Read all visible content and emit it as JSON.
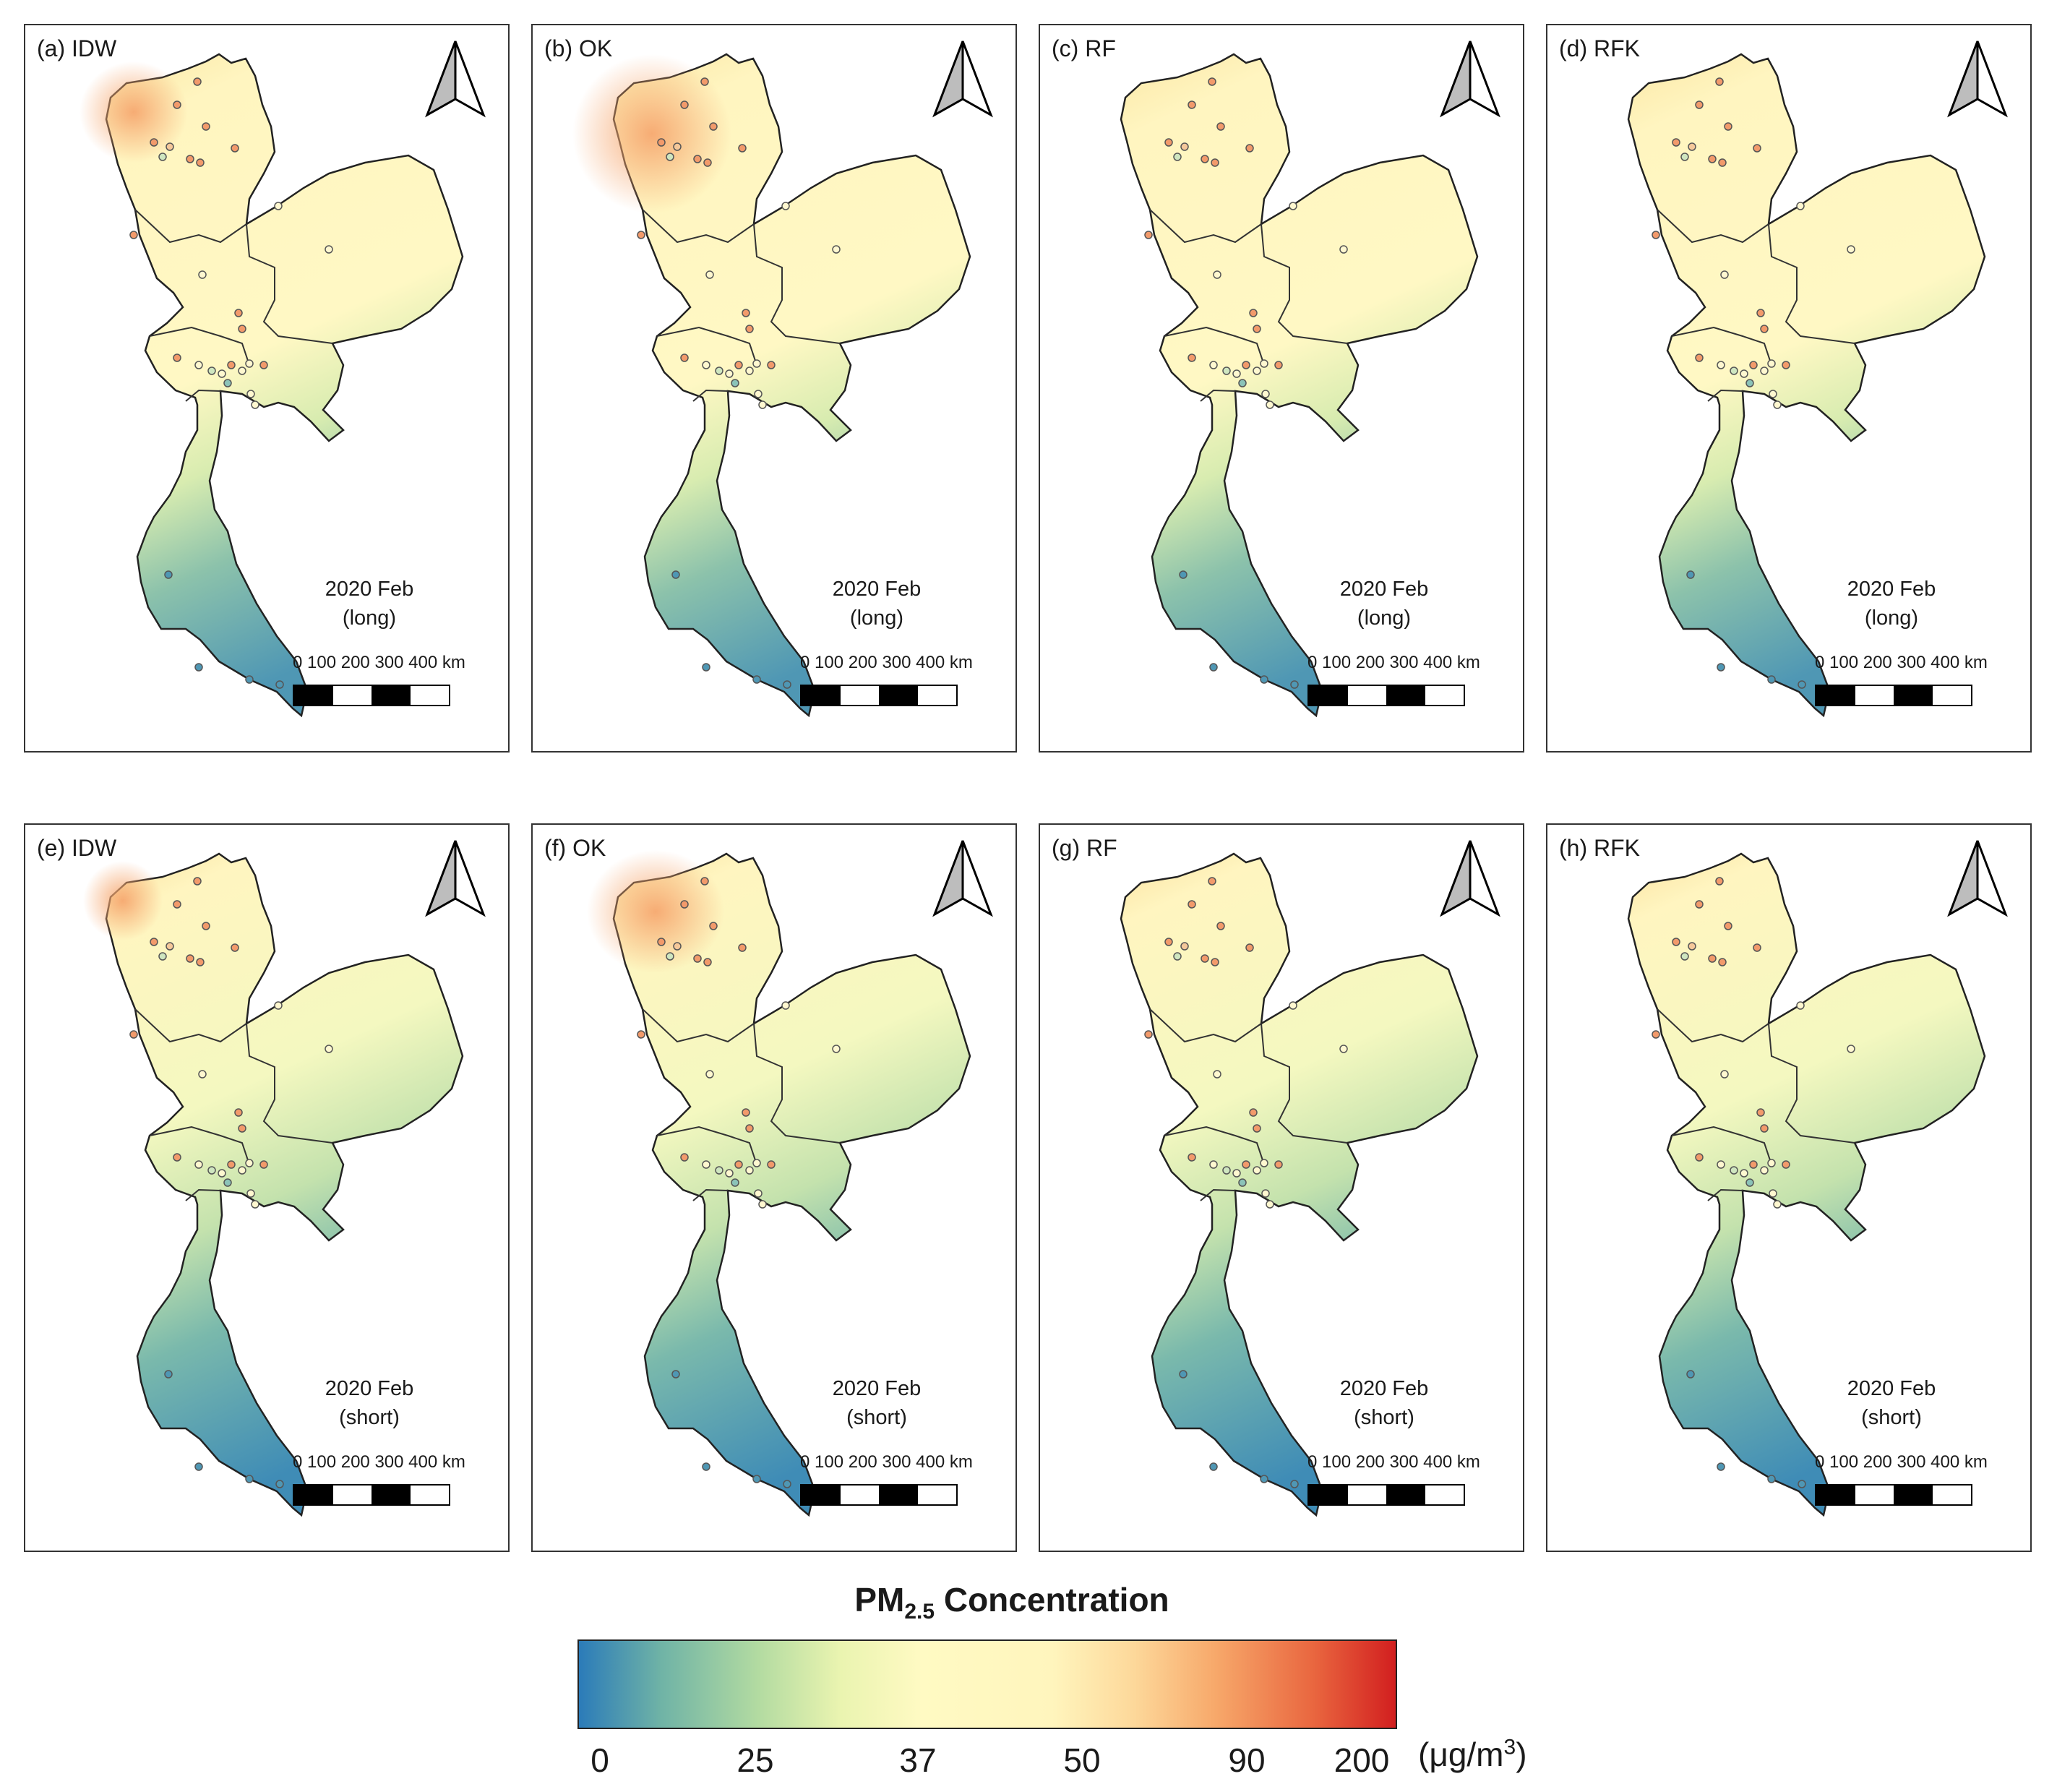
{
  "panels": [
    {
      "label": "(a) IDW",
      "date": "2020 Feb",
      "range": "(long)"
    },
    {
      "label": "(b) OK",
      "date": "2020 Feb",
      "range": "(long)"
    },
    {
      "label": "(c) RF",
      "date": "2020 Feb",
      "range": "(long)"
    },
    {
      "label": "(d) RFK",
      "date": "2020 Feb",
      "range": "(long)"
    },
    {
      "label": "(e) IDW",
      "date": "2020 Feb",
      "range": "(short)"
    },
    {
      "label": "(f) OK",
      "date": "2020 Feb",
      "range": "(short)"
    },
    {
      "label": "(g) RF",
      "date": "2020 Feb",
      "range": "(short)"
    },
    {
      "label": "(h) RFK",
      "date": "2020 Feb",
      "range": "(short)"
    }
  ],
  "scale_bar": {
    "labels": "0   100 200 300 400 km"
  },
  "legend": {
    "title_main": "PM",
    "title_sub": "2.5",
    "title_rest": " Concentration",
    "ticks": [
      "0",
      "25",
      "37",
      "50",
      "90",
      "200"
    ],
    "unit_prefix": "(μg/m",
    "unit_sup": "3",
    "unit_suffix": ")",
    "colors": [
      "#2b7bb9",
      "#b3dba1",
      "#fffac3",
      "#fdd89a",
      "#e9663f",
      "#d21f1f"
    ]
  },
  "icons": {
    "north_arrow": "north-arrow-icon"
  }
}
